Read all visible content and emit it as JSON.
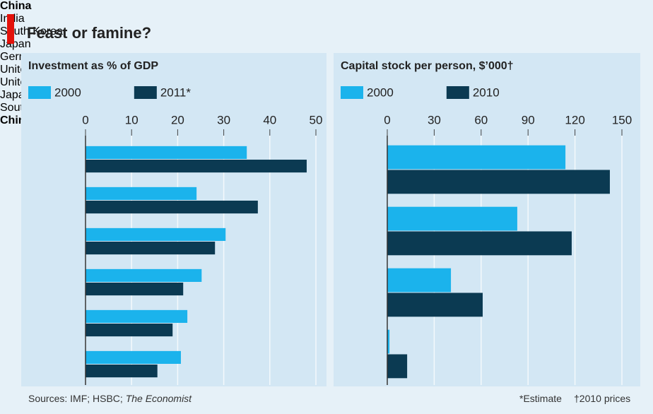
{
  "title": "Feast or famine?",
  "sources": "Sources: IMF; HSBC;",
  "sources_italic": "The Economist",
  "notes": [
    "*Estimate",
    "†2010 prices"
  ],
  "chart_data": [
    {
      "type": "bar",
      "orientation": "horizontal",
      "title": "Investment as % of GDP",
      "categories": [
        "China",
        "India",
        "South Korea",
        "Japan",
        "Germany",
        "United States"
      ],
      "highlight": "China",
      "series": [
        {
          "name": "2000",
          "color": "#1bb3ec",
          "values": [
            35.0,
            24.1,
            30.4,
            25.2,
            22.1,
            20.7
          ]
        },
        {
          "name": "2011*",
          "color": "#0b3a52",
          "values": [
            48.0,
            37.4,
            28.1,
            21.2,
            18.9,
            15.6
          ]
        }
      ],
      "xlim": [
        0,
        50
      ],
      "xticks": [
        0,
        10,
        20,
        30,
        40,
        50
      ],
      "grid": true
    },
    {
      "type": "bar",
      "orientation": "horizontal",
      "title": "Capital stock per person, $’000†",
      "categories": [
        "United States",
        "Japan",
        "South Korea",
        "China"
      ],
      "highlight": "China",
      "series": [
        {
          "name": "2000",
          "color": "#1bb3ec",
          "values": [
            113.9,
            83.1,
            40.7,
            1.4
          ]
        },
        {
          "name": "2010",
          "color": "#0b3a52",
          "values": [
            142.3,
            117.9,
            61.0,
            12.7
          ]
        }
      ],
      "xlim": [
        0,
        150
      ],
      "xticks": [
        0,
        30,
        60,
        90,
        120,
        150
      ],
      "grid": true
    }
  ]
}
